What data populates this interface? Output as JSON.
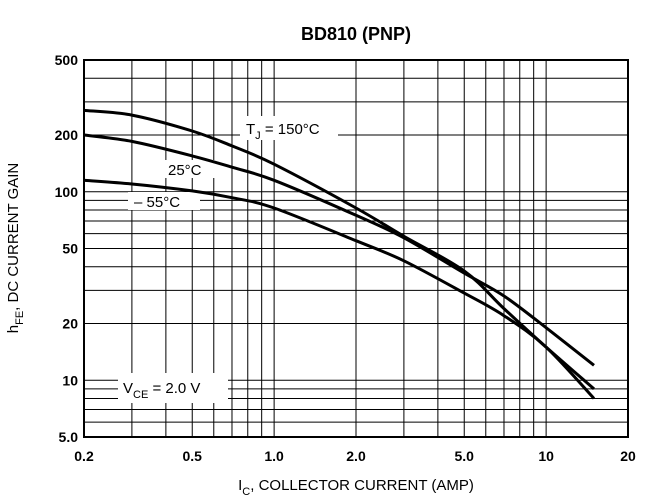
{
  "chart_data": {
    "type": "line",
    "title": "BD810 (PNP)",
    "x_scale": "log",
    "y_scale": "log",
    "xlim": [
      0.2,
      20
    ],
    "ylim": [
      5,
      500
    ],
    "grid": true,
    "xlabel": {
      "main": "I",
      "sub": "C",
      "rest": ", COLLECTOR CURRENT (AMP)"
    },
    "ylabel": {
      "main": "h",
      "sub": "FE",
      "rest": ", DC CURRENT GAIN"
    },
    "x_ticks": [
      {
        "value": 0.2,
        "label": "0.2"
      },
      {
        "value": 0.5,
        "label": "0.5"
      },
      {
        "value": 1,
        "label": "1.0"
      },
      {
        "value": 2,
        "label": "2.0"
      },
      {
        "value": 5,
        "label": "5.0"
      },
      {
        "value": 10,
        "label": "10"
      },
      {
        "value": 20,
        "label": "20"
      }
    ],
    "y_ticks": [
      {
        "value": 500,
        "label": "500"
      },
      {
        "value": 200,
        "label": "200"
      },
      {
        "value": 100,
        "label": "100"
      },
      {
        "value": 50,
        "label": "50"
      },
      {
        "value": 20,
        "label": "20"
      },
      {
        "value": 10,
        "label": "10"
      },
      {
        "value": 5,
        "label": "5.0"
      }
    ],
    "series": [
      {
        "name": "T_J = 150°C",
        "x": [
          0.2,
          0.3,
          0.5,
          0.7,
          1.0,
          2.0,
          3.0,
          5.0,
          7.0,
          10,
          15
        ],
        "y": [
          270,
          255,
          210,
          175,
          140,
          82,
          58,
          38,
          24,
          15,
          9
        ]
      },
      {
        "name": "25°C",
        "x": [
          0.2,
          0.3,
          0.5,
          0.7,
          1.0,
          2.0,
          3.0,
          5.0,
          7.0,
          10,
          15
        ],
        "y": [
          200,
          185,
          155,
          135,
          115,
          75,
          57,
          37,
          28,
          19,
          12
        ]
      },
      {
        "name": "−55°C",
        "x": [
          0.2,
          0.3,
          0.5,
          0.7,
          1.0,
          2.0,
          3.0,
          5.0,
          7.0,
          10,
          15
        ],
        "y": [
          115,
          110,
          101,
          93,
          82,
          55,
          43,
          29,
          22,
          15,
          8
        ]
      }
    ],
    "annotations": {
      "tj": {
        "main": "T",
        "sub": "J",
        "rest": " = 150°C"
      },
      "t25": "25°C",
      "tm55": "– 55°C",
      "vce": {
        "main": "V",
        "sub": "CE",
        "rest": " = 2.0 V"
      }
    }
  }
}
